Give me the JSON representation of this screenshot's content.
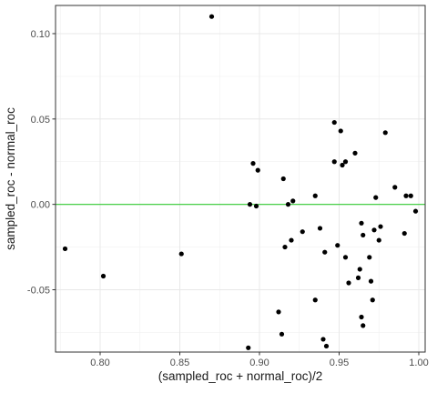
{
  "chart_data": {
    "type": "scatter",
    "title": "",
    "xlabel": "(sampled_roc + normal_roc)/2",
    "ylabel": "sampled_roc - normal_roc",
    "xlim": [
      0.772,
      1.004
    ],
    "ylim": [
      -0.0865,
      0.1165
    ],
    "x_ticks": [
      {
        "value": 0.8,
        "label": "0.80"
      },
      {
        "value": 0.85,
        "label": "0.85"
      },
      {
        "value": 0.9,
        "label": "0.90"
      },
      {
        "value": 0.95,
        "label": "0.95"
      },
      {
        "value": 1.0,
        "label": "1.00"
      }
    ],
    "y_ticks": [
      {
        "value": -0.05,
        "label": "-0.05"
      },
      {
        "value": 0.0,
        "label": "0.00"
      },
      {
        "value": 0.05,
        "label": "0.05"
      },
      {
        "value": 0.1,
        "label": "0.10"
      }
    ],
    "reference_line": {
      "y": 0.0,
      "color": "#33cc33"
    },
    "grid": true,
    "theme": "bw",
    "point_color": "#000000",
    "points": [
      {
        "x": 0.778,
        "y": -0.026
      },
      {
        "x": 0.802,
        "y": -0.042
      },
      {
        "x": 0.851,
        "y": -0.029
      },
      {
        "x": 0.87,
        "y": 0.11
      },
      {
        "x": 0.893,
        "y": -0.084
      },
      {
        "x": 0.894,
        "y": 0.0
      },
      {
        "x": 0.896,
        "y": 0.024
      },
      {
        "x": 0.898,
        "y": -0.001
      },
      {
        "x": 0.899,
        "y": 0.02
      },
      {
        "x": 0.912,
        "y": -0.063
      },
      {
        "x": 0.914,
        "y": -0.076
      },
      {
        "x": 0.915,
        "y": 0.015
      },
      {
        "x": 0.916,
        "y": -0.025
      },
      {
        "x": 0.918,
        "y": 0.0
      },
      {
        "x": 0.92,
        "y": -0.021
      },
      {
        "x": 0.921,
        "y": 0.002
      },
      {
        "x": 0.927,
        "y": -0.016
      },
      {
        "x": 0.935,
        "y": 0.005
      },
      {
        "x": 0.935,
        "y": -0.056
      },
      {
        "x": 0.938,
        "y": -0.014
      },
      {
        "x": 0.94,
        "y": -0.079
      },
      {
        "x": 0.941,
        "y": -0.028
      },
      {
        "x": 0.942,
        "y": -0.083
      },
      {
        "x": 0.947,
        "y": 0.048
      },
      {
        "x": 0.947,
        "y": 0.025
      },
      {
        "x": 0.949,
        "y": -0.024
      },
      {
        "x": 0.951,
        "y": 0.043
      },
      {
        "x": 0.952,
        "y": 0.023
      },
      {
        "x": 0.954,
        "y": 0.025
      },
      {
        "x": 0.954,
        "y": -0.031
      },
      {
        "x": 0.956,
        "y": -0.046
      },
      {
        "x": 0.96,
        "y": 0.03
      },
      {
        "x": 0.962,
        "y": -0.043
      },
      {
        "x": 0.963,
        "y": -0.038
      },
      {
        "x": 0.964,
        "y": -0.066
      },
      {
        "x": 0.965,
        "y": -0.071
      },
      {
        "x": 0.964,
        "y": -0.011
      },
      {
        "x": 0.965,
        "y": -0.018
      },
      {
        "x": 0.969,
        "y": -0.031
      },
      {
        "x": 0.97,
        "y": -0.045
      },
      {
        "x": 0.971,
        "y": -0.056
      },
      {
        "x": 0.972,
        "y": -0.015
      },
      {
        "x": 0.973,
        "y": 0.004
      },
      {
        "x": 0.975,
        "y": -0.021
      },
      {
        "x": 0.976,
        "y": -0.013
      },
      {
        "x": 0.979,
        "y": 0.042
      },
      {
        "x": 0.985,
        "y": 0.01
      },
      {
        "x": 0.991,
        "y": -0.017
      },
      {
        "x": 0.992,
        "y": 0.005
      },
      {
        "x": 0.995,
        "y": 0.005
      },
      {
        "x": 0.998,
        "y": -0.004
      }
    ]
  }
}
